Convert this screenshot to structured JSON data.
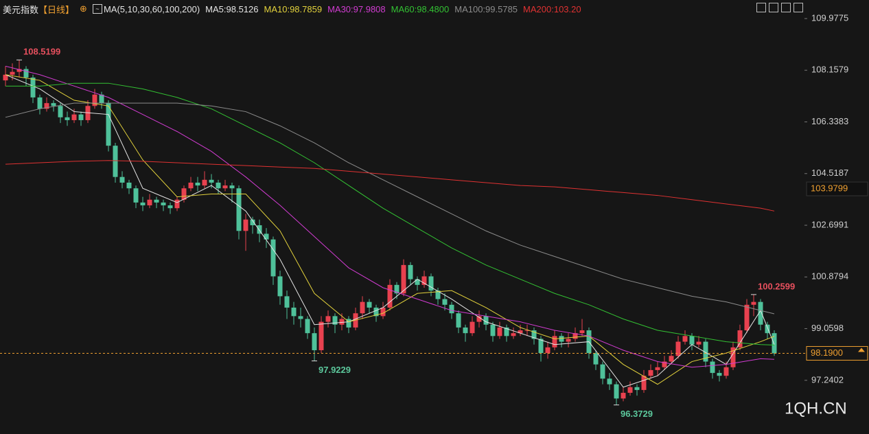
{
  "chart_data": {
    "type": "candlestick",
    "title": "美元指数",
    "period": "【日线】",
    "indicator": "MA(5,10,30,60,100,200)",
    "watermark": "1QH.CN",
    "up_color": "#e8414f",
    "down_color": "#4fc19a",
    "ylim": [
      95.35,
      110.63
    ],
    "yticks": [
      109.9775,
      108.1579,
      106.3383,
      104.5187,
      102.6991,
      100.8794,
      99.0598,
      97.2402
    ],
    "last_price": {
      "value": 98.19,
      "label": "98.1900"
    },
    "marker_price": 103.9799,
    "annotations": [
      108.5199,
      97.9229,
      96.3729,
      100.2599
    ],
    "ohlc": [
      [
        107.8,
        108.3,
        107.6,
        108.0
      ],
      [
        108.0,
        108.4,
        107.8,
        108.1
      ],
      [
        108.1,
        108.5199,
        107.9,
        108.2
      ],
      [
        108.2,
        108.3,
        107.6,
        107.9
      ],
      [
        107.9,
        108.0,
        107.0,
        107.2
      ],
      [
        107.2,
        107.3,
        106.6,
        106.8
      ],
      [
        106.8,
        107.2,
        106.7,
        107.0
      ],
      [
        107.0,
        107.1,
        106.7,
        106.9
      ],
      [
        106.9,
        107.0,
        106.3,
        106.5
      ],
      [
        106.5,
        106.7,
        106.2,
        106.4
      ],
      [
        106.4,
        106.8,
        106.3,
        106.6
      ],
      [
        106.6,
        106.7,
        106.2,
        106.4
      ],
      [
        106.4,
        107.1,
        106.3,
        106.9
      ],
      [
        106.9,
        107.5,
        106.8,
        107.3
      ],
      [
        107.3,
        107.4,
        106.8,
        107.0
      ],
      [
        107.0,
        107.1,
        105.3,
        105.5
      ],
      [
        105.5,
        105.6,
        104.2,
        104.4
      ],
      [
        104.4,
        104.6,
        104.0,
        104.2
      ],
      [
        104.2,
        104.3,
        103.8,
        104.0
      ],
      [
        104.0,
        104.1,
        103.3,
        103.5
      ],
      [
        103.5,
        103.7,
        103.2,
        103.4
      ],
      [
        103.4,
        103.8,
        103.3,
        103.6
      ],
      [
        103.6,
        103.7,
        103.3,
        103.5
      ],
      [
        103.5,
        103.6,
        103.2,
        103.4
      ],
      [
        103.4,
        103.5,
        103.1,
        103.3
      ],
      [
        103.3,
        103.7,
        103.2,
        103.6
      ],
      [
        103.6,
        104.1,
        103.5,
        104.0
      ],
      [
        104.0,
        104.4,
        103.9,
        104.2
      ],
      [
        104.2,
        104.4,
        103.9,
        104.1
      ],
      [
        104.1,
        104.6,
        104.0,
        104.3
      ],
      [
        104.3,
        104.5,
        104.0,
        104.2
      ],
      [
        104.2,
        104.3,
        103.8,
        104.0
      ],
      [
        104.0,
        104.3,
        103.9,
        104.1
      ],
      [
        104.1,
        104.2,
        103.5,
        104.0
      ],
      [
        104.0,
        104.1,
        102.2,
        102.5
      ],
      [
        102.5,
        103.1,
        101.8,
        102.9
      ],
      [
        102.9,
        103.0,
        102.4,
        102.7
      ],
      [
        102.7,
        102.9,
        102.1,
        102.4
      ],
      [
        102.4,
        102.6,
        101.9,
        102.2
      ],
      [
        102.2,
        102.3,
        100.6,
        100.9
      ],
      [
        100.9,
        101.1,
        99.9,
        100.2
      ],
      [
        100.2,
        100.4,
        99.4,
        99.8
      ],
      [
        99.8,
        100.0,
        99.2,
        99.5
      ],
      [
        99.5,
        99.8,
        99.1,
        99.4
      ],
      [
        99.4,
        99.5,
        98.7,
        98.9
      ],
      [
        98.9,
        99.1,
        97.9229,
        98.3
      ],
      [
        98.3,
        99.5,
        98.2,
        99.3
      ],
      [
        99.3,
        99.7,
        99.1,
        99.5
      ],
      [
        99.5,
        99.6,
        98.9,
        99.2
      ],
      [
        99.2,
        99.6,
        99.0,
        99.4
      ],
      [
        99.4,
        99.5,
        98.9,
        99.1
      ],
      [
        99.1,
        99.8,
        99.0,
        99.6
      ],
      [
        99.6,
        100.2,
        99.4,
        100.0
      ],
      [
        100.0,
        100.1,
        99.6,
        99.8
      ],
      [
        99.8,
        99.9,
        99.3,
        99.5
      ],
      [
        99.5,
        100.0,
        99.4,
        99.8
      ],
      [
        99.8,
        100.8,
        99.7,
        100.6
      ],
      [
        100.6,
        100.7,
        100.1,
        100.3
      ],
      [
        100.3,
        101.5,
        100.2,
        101.3
      ],
      [
        101.3,
        101.4,
        100.6,
        100.8
      ],
      [
        100.8,
        100.9,
        100.4,
        100.6
      ],
      [
        100.6,
        101.1,
        100.5,
        100.9
      ],
      [
        100.9,
        101.0,
        100.2,
        100.4
      ],
      [
        100.4,
        100.5,
        99.9,
        100.1
      ],
      [
        100.1,
        100.3,
        99.7,
        99.9
      ],
      [
        99.9,
        100.0,
        99.4,
        99.6
      ],
      [
        99.6,
        99.7,
        98.9,
        99.1
      ],
      [
        99.1,
        99.2,
        98.6,
        98.9
      ],
      [
        98.9,
        99.5,
        98.8,
        99.3
      ],
      [
        99.3,
        99.7,
        99.1,
        99.5
      ],
      [
        99.5,
        99.6,
        99.0,
        99.2
      ],
      [
        99.2,
        99.3,
        98.6,
        98.8
      ],
      [
        98.8,
        99.3,
        98.7,
        99.1
      ],
      [
        99.1,
        99.2,
        98.6,
        98.8
      ],
      [
        98.8,
        99.1,
        98.7,
        98.9
      ],
      [
        98.9,
        99.2,
        98.8,
        99.0
      ],
      [
        99.0,
        99.2,
        98.8,
        99.0
      ],
      [
        99.0,
        99.1,
        98.5,
        98.7
      ],
      [
        98.7,
        98.8,
        97.9,
        98.2
      ],
      [
        98.2,
        98.6,
        98.0,
        98.4
      ],
      [
        98.4,
        99.0,
        98.3,
        98.8
      ],
      [
        98.8,
        98.9,
        98.4,
        98.6
      ],
      [
        98.6,
        98.9,
        98.4,
        98.7
      ],
      [
        98.7,
        99.1,
        98.6,
        98.9
      ],
      [
        98.9,
        99.4,
        98.8,
        99.0
      ],
      [
        99.0,
        99.1,
        98.0,
        98.2
      ],
      [
        98.2,
        98.3,
        97.6,
        97.8
      ],
      [
        97.8,
        97.9,
        97.1,
        97.3
      ],
      [
        97.3,
        97.5,
        96.9,
        97.1
      ],
      [
        97.1,
        97.2,
        96.3729,
        96.6
      ],
      [
        96.6,
        97.0,
        96.5,
        96.8
      ],
      [
        96.8,
        97.2,
        96.7,
        97.0
      ],
      [
        97.0,
        97.1,
        96.7,
        96.9
      ],
      [
        96.9,
        97.6,
        96.8,
        97.4
      ],
      [
        97.4,
        97.8,
        97.3,
        97.6
      ],
      [
        97.6,
        97.9,
        97.4,
        97.7
      ],
      [
        97.7,
        98.1,
        97.6,
        97.9
      ],
      [
        97.9,
        98.3,
        97.8,
        98.1
      ],
      [
        98.1,
        98.8,
        98.0,
        98.6
      ],
      [
        98.6,
        99.0,
        98.5,
        98.8
      ],
      [
        98.8,
        98.9,
        98.3,
        98.5
      ],
      [
        98.5,
        98.8,
        98.4,
        98.6
      ],
      [
        98.6,
        98.7,
        97.7,
        97.9
      ],
      [
        97.9,
        98.0,
        97.3,
        97.5
      ],
      [
        97.5,
        97.6,
        97.2,
        97.4
      ],
      [
        97.4,
        97.9,
        97.3,
        97.7
      ],
      [
        97.7,
        98.6,
        97.6,
        98.4
      ],
      [
        98.4,
        99.2,
        98.3,
        99.0
      ],
      [
        99.0,
        100.1,
        98.9,
        99.9
      ],
      [
        99.9,
        100.2599,
        99.5,
        100.0
      ],
      [
        100.0,
        100.1,
        99.0,
        99.2
      ],
      [
        99.2,
        99.3,
        98.7,
        98.9
      ],
      [
        98.9,
        99.0,
        98.1,
        98.19
      ]
    ],
    "ma_x": [
      0,
      5,
      10,
      15,
      20,
      25,
      30,
      35,
      40,
      45,
      50,
      55,
      60,
      65,
      70,
      75,
      80,
      85,
      90,
      95,
      100,
      105,
      110,
      112
    ],
    "series": [
      {
        "name": "MA5:98.5126",
        "color": "#e6e6e6",
        "values": [
          108.0,
          107.5,
          106.7,
          106.6,
          104.0,
          103.5,
          104.1,
          103.2,
          101.5,
          99.2,
          99.3,
          99.8,
          100.8,
          100.1,
          99.3,
          98.9,
          98.5,
          98.6,
          97.0,
          97.4,
          98.5,
          97.8,
          99.7,
          98.5
        ]
      },
      {
        "name": "MA10:98.7859",
        "color": "#e3d23c",
        "values": [
          108.0,
          107.8,
          107.1,
          106.9,
          105.0,
          103.7,
          103.8,
          103.8,
          102.5,
          100.3,
          99.3,
          99.6,
          100.3,
          100.4,
          99.8,
          99.1,
          98.7,
          98.8,
          97.8,
          97.1,
          97.9,
          98.2,
          98.6,
          98.79
        ]
      },
      {
        "name": "MA30:97.9808",
        "color": "#d23cd2",
        "values": [
          108.3,
          108.0,
          107.6,
          107.2,
          106.6,
          106.0,
          105.3,
          104.4,
          103.4,
          102.3,
          101.2,
          100.5,
          100.1,
          99.7,
          99.5,
          99.3,
          99.0,
          98.8,
          98.3,
          97.9,
          97.7,
          97.8,
          98.0,
          97.98
        ]
      },
      {
        "name": "MA60:98.4800",
        "color": "#33c233",
        "values": [
          107.6,
          107.6,
          107.7,
          107.7,
          107.5,
          107.2,
          106.8,
          106.2,
          105.6,
          104.9,
          104.1,
          103.3,
          102.6,
          101.9,
          101.3,
          100.8,
          100.3,
          99.9,
          99.4,
          99.0,
          98.8,
          98.6,
          98.5,
          98.48
        ]
      },
      {
        "name": "MA100:99.5785",
        "color": "#8c8c8c",
        "values": [
          106.5,
          106.8,
          107.0,
          107.0,
          107.0,
          107.0,
          106.9,
          106.7,
          106.2,
          105.6,
          104.9,
          104.3,
          103.7,
          103.1,
          102.5,
          102.0,
          101.6,
          101.2,
          100.8,
          100.5,
          100.2,
          100.0,
          99.7,
          99.58
        ]
      },
      {
        "name": "MA200:103.20",
        "color": "#e03232",
        "values": [
          104.85,
          104.9,
          104.95,
          104.98,
          104.95,
          104.9,
          104.85,
          104.8,
          104.75,
          104.7,
          104.6,
          104.5,
          104.4,
          104.3,
          104.2,
          104.1,
          104.05,
          103.95,
          103.85,
          103.75,
          103.6,
          103.45,
          103.3,
          103.2
        ]
      }
    ]
  }
}
